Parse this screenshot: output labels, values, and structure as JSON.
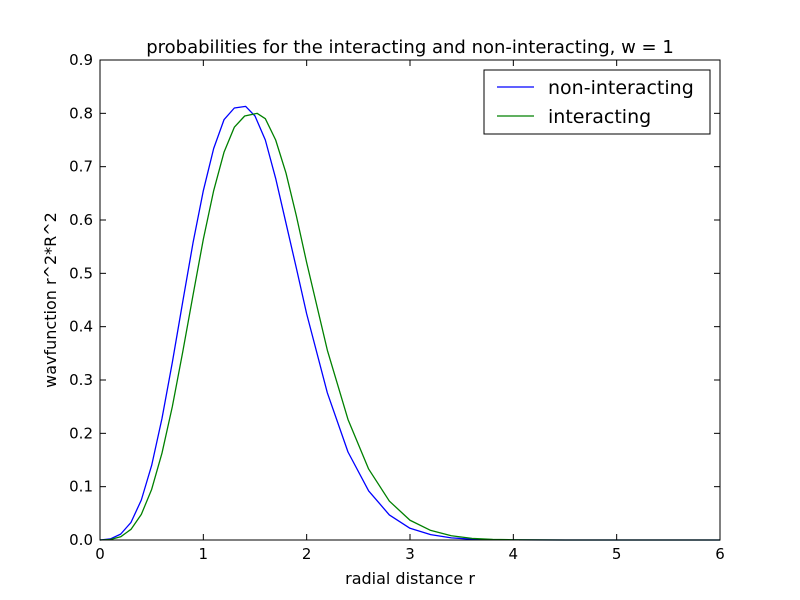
{
  "chart_data": {
    "type": "line",
    "title": "probabilities for the interacting and non-interacting, w = 1",
    "xlabel": "radial distance r",
    "ylabel": "wavfunction r^2*R^2",
    "xlim": [
      0,
      6
    ],
    "ylim": [
      0,
      0.9
    ],
    "xticks": [
      "0",
      "1",
      "2",
      "3",
      "4",
      "5",
      "6"
    ],
    "yticks": [
      "0.0",
      "0.1",
      "0.2",
      "0.3",
      "0.4",
      "0.5",
      "0.6",
      "0.7",
      "0.8",
      "0.9"
    ],
    "grid": false,
    "legend_position": "top-right",
    "series": [
      {
        "name": "non-interacting",
        "color": "#0000ff",
        "x": [
          0,
          0.1,
          0.2,
          0.3,
          0.4,
          0.5,
          0.6,
          0.7,
          0.8,
          0.9,
          1.0,
          1.1,
          1.2,
          1.3,
          1.41,
          1.5,
          1.6,
          1.7,
          1.8,
          1.9,
          2.0,
          2.2,
          2.4,
          2.6,
          2.8,
          3.0,
          3.2,
          3.4,
          3.6,
          3.8,
          4.0,
          4.5,
          5.0,
          6.0
        ],
        "y": [
          0,
          0.002,
          0.011,
          0.033,
          0.075,
          0.14,
          0.228,
          0.333,
          0.446,
          0.557,
          0.655,
          0.734,
          0.788,
          0.81,
          0.813,
          0.795,
          0.75,
          0.678,
          0.594,
          0.51,
          0.424,
          0.276,
          0.165,
          0.092,
          0.047,
          0.022,
          0.01,
          0.004,
          0.0015,
          0.0005,
          0.0002,
          0,
          0,
          0
        ]
      },
      {
        "name": "interacting",
        "color": "#008000",
        "x": [
          0,
          0.1,
          0.2,
          0.3,
          0.4,
          0.5,
          0.6,
          0.7,
          0.8,
          0.9,
          1.0,
          1.1,
          1.2,
          1.3,
          1.4,
          1.52,
          1.6,
          1.7,
          1.8,
          1.9,
          2.0,
          2.2,
          2.4,
          2.6,
          2.8,
          3.0,
          3.2,
          3.4,
          3.6,
          3.8,
          4.0,
          4.5,
          5.0,
          6.0
        ],
        "y": [
          0,
          0.001,
          0.006,
          0.02,
          0.048,
          0.095,
          0.163,
          0.25,
          0.352,
          0.459,
          0.564,
          0.655,
          0.727,
          0.774,
          0.795,
          0.8,
          0.79,
          0.75,
          0.688,
          0.608,
          0.52,
          0.356,
          0.226,
          0.133,
          0.073,
          0.037,
          0.018,
          0.008,
          0.003,
          0.0012,
          0.0004,
          0,
          0,
          0
        ]
      }
    ]
  }
}
